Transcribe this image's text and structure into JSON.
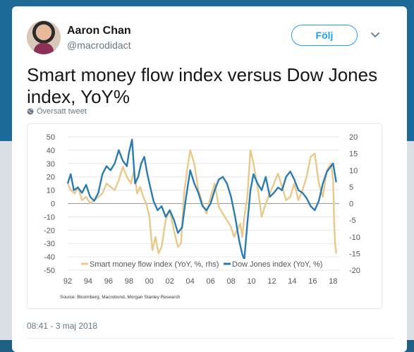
{
  "tweet": {
    "author_name": "Aaron Chan",
    "author_handle": "@macrodidact",
    "follow_label": "Följ",
    "text": "Smart money flow index versus Dow Jones index, YoY%",
    "translated_label": "Översatt tweet",
    "timestamp": "08:41 - 3 maj 2018"
  },
  "icons": {
    "more": "chevron-down-icon",
    "translate": "globe-icon",
    "avatar": "avatar"
  },
  "colors": {
    "accent": "#1da1f2",
    "dow_series": "#2b7bb3",
    "smart_series": "#e8c98b"
  },
  "chart_data": {
    "type": "line",
    "title": "",
    "source": "Source: Bloomberg, Macrobond, Morgan Stanley Research",
    "x_ticks": [
      "92",
      "94",
      "96",
      "98",
      "00",
      "02",
      "04",
      "06",
      "08",
      "10",
      "12",
      "14",
      "16",
      "18"
    ],
    "y_left_ticks": [
      "50",
      "40",
      "30",
      "20",
      "10",
      "0",
      "-10",
      "-20",
      "-30",
      "-40",
      "-50"
    ],
    "y_right_ticks": [
      "20",
      "15",
      "10",
      "5",
      "0",
      "-5",
      "-10",
      "-15",
      "-20"
    ],
    "ylim_left": [
      -50,
      50
    ],
    "ylim_right": [
      -20,
      20
    ],
    "xlim": [
      1992,
      2018.6
    ],
    "grid": "horizontal",
    "legend_position": "bottom",
    "series": [
      {
        "name": "Smart money flow index (YoY, %, rhs)",
        "axis": "right",
        "color": "#e8c98b",
        "x": [
          1992.0,
          1992.3,
          1992.7,
          1993.0,
          1993.4,
          1993.8,
          1994.2,
          1994.6,
          1995.0,
          1995.4,
          1995.8,
          1996.2,
          1996.6,
          1997.0,
          1997.4,
          1997.8,
          1998.2,
          1998.5,
          1998.8,
          1999.1,
          1999.4,
          1999.7,
          2000.0,
          2000.3,
          2000.6,
          2000.9,
          2001.2,
          2001.6,
          2002.0,
          2002.4,
          2002.8,
          2003.1,
          2003.4,
          2003.7,
          2004.0,
          2004.4,
          2004.8,
          2005.2,
          2005.6,
          2006.0,
          2006.4,
          2006.8,
          2007.2,
          2007.6,
          2008.0,
          2008.3,
          2008.6,
          2008.9,
          2009.1,
          2009.3,
          2009.6,
          2009.9,
          2010.2,
          2010.6,
          2011.0,
          2011.4,
          2011.8,
          2012.2,
          2012.6,
          2013.0,
          2013.4,
          2013.8,
          2014.2,
          2014.6,
          2015.0,
          2015.4,
          2015.8,
          2016.2,
          2016.6,
          2017.0,
          2017.4,
          2017.8,
          2018.0,
          2018.1,
          2018.2,
          2018.3
        ],
        "values": [
          6,
          4,
          3,
          5,
          1,
          2,
          0,
          1,
          2,
          3,
          6,
          5,
          4,
          7,
          11,
          8,
          6,
          10,
          3,
          5,
          2,
          0,
          -4,
          -14,
          -10,
          -15,
          -13,
          -5,
          -2,
          -8,
          -13,
          -12,
          3,
          10,
          16,
          12,
          4,
          0,
          -3,
          2,
          6,
          -1,
          -3,
          -5,
          -7,
          -10,
          -8,
          -6,
          -10,
          -4,
          2,
          16,
          12,
          5,
          -4,
          0,
          3,
          6,
          9,
          5,
          1,
          2,
          6,
          1,
          4,
          8,
          14,
          15,
          6,
          2,
          10,
          12,
          7,
          -6,
          -12,
          -15
        ]
      },
      {
        "name": "Dow Jones index (YoY, %)",
        "axis": "left",
        "color": "#2b7bb3",
        "x": [
          1992.0,
          1992.3,
          1992.6,
          1993.0,
          1993.4,
          1993.8,
          1994.2,
          1994.6,
          1995.0,
          1995.4,
          1995.8,
          1996.2,
          1996.6,
          1997.0,
          1997.4,
          1997.8,
          1998.0,
          1998.3,
          1998.6,
          1998.9,
          1999.2,
          1999.5,
          1999.8,
          2000.1,
          2000.4,
          2000.8,
          2001.2,
          2001.6,
          2002.0,
          2002.4,
          2002.8,
          2003.2,
          2003.6,
          2004.0,
          2004.4,
          2004.8,
          2005.2,
          2005.6,
          2006.0,
          2006.4,
          2006.8,
          2007.2,
          2007.6,
          2008.0,
          2008.4,
          2008.8,
          2009.1,
          2009.3,
          2009.6,
          2009.9,
          2010.2,
          2010.6,
          2011.0,
          2011.4,
          2011.8,
          2012.2,
          2012.6,
          2013.0,
          2013.4,
          2013.8,
          2014.2,
          2014.6,
          2015.0,
          2015.4,
          2015.8,
          2016.2,
          2016.6,
          2017.0,
          2017.4,
          2017.8,
          2018.0,
          2018.3
        ],
        "values": [
          15,
          22,
          10,
          12,
          8,
          14,
          5,
          2,
          8,
          22,
          28,
          25,
          30,
          40,
          32,
          28,
          38,
          48,
          15,
          20,
          30,
          35,
          22,
          12,
          2,
          -5,
          -2,
          -10,
          -5,
          -12,
          -22,
          -18,
          5,
          25,
          15,
          8,
          -2,
          -5,
          0,
          10,
          18,
          20,
          15,
          5,
          -10,
          -28,
          -38,
          -42,
          -15,
          10,
          22,
          15,
          10,
          20,
          5,
          8,
          12,
          10,
          20,
          24,
          18,
          10,
          8,
          4,
          -2,
          -5,
          2,
          15,
          24,
          28,
          30,
          16
        ]
      }
    ]
  }
}
